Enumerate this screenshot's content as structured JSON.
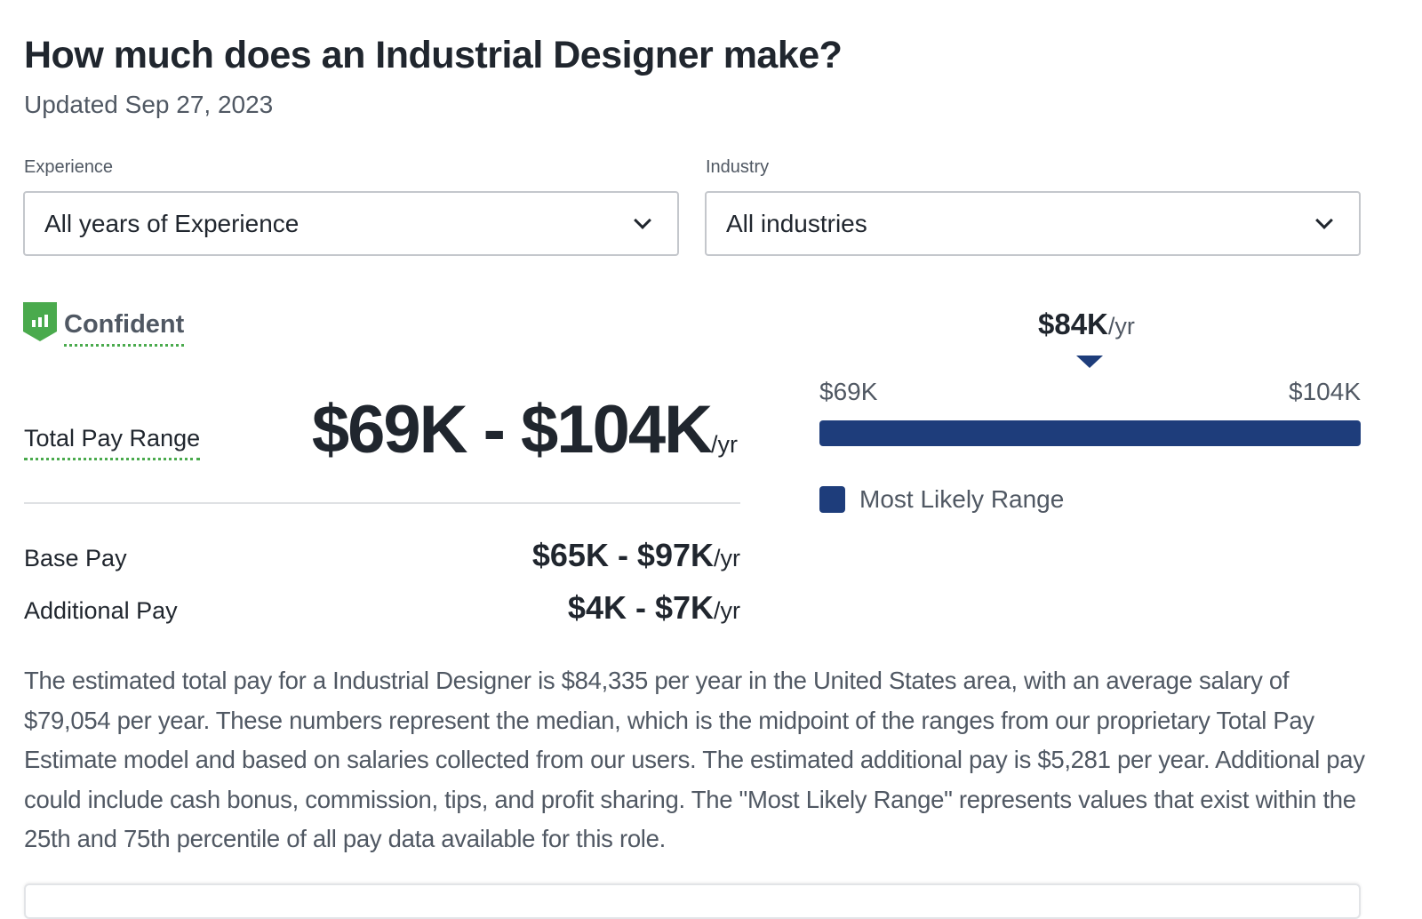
{
  "title": "How much does an Industrial Designer make?",
  "updated": "Updated Sep 27, 2023",
  "filters": {
    "experience": {
      "label": "Experience",
      "value": "All years of Experience"
    },
    "industry": {
      "label": "Industry",
      "value": "All industries"
    }
  },
  "confidence": {
    "label": "Confident",
    "color": "#4aaa4d"
  },
  "total_pay": {
    "label": "Total Pay Range",
    "range": "$69K - $104K",
    "unit": "/yr"
  },
  "base_pay": {
    "label": "Base Pay",
    "range": "$65K - $97K",
    "unit": "/yr"
  },
  "additional_pay": {
    "label": "Additional Pay",
    "range": "$4K - $7K",
    "unit": "/yr"
  },
  "range_chart": {
    "median": "$84K",
    "unit": "/yr",
    "low": "$69K",
    "high": "$104K",
    "median_position_fraction": 0.5,
    "legend": "Most Likely Range",
    "color": "#1e3d7b"
  },
  "description": "The estimated total pay for a Industrial Designer is $84,335 per year in the United States area, with an average salary of $79,054 per year. These numbers represent the median, which is the midpoint of the ranges from our proprietary Total Pay Estimate model and based on salaries collected from our users. The estimated additional pay is $5,281 per year. Additional pay could include cash bonus, commission, tips, and profit sharing. The \"Most Likely Range\" represents values that exist within the 25th and 75th percentile of all pay data available for this role."
}
